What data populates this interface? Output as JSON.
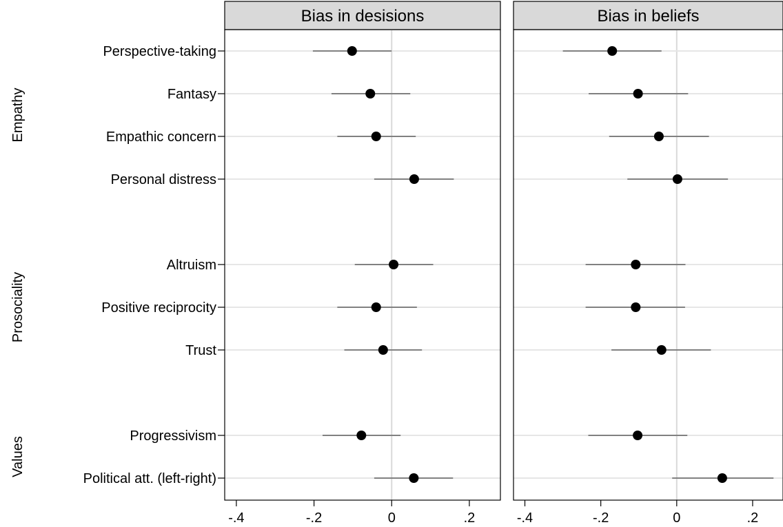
{
  "chart_data": {
    "type": "scatter",
    "panels": [
      {
        "title": "Bias in desisions",
        "series": [
          {
            "label": "Perspective-taking",
            "estimate": -0.102,
            "ci": [
              -0.203,
              0.0
            ]
          },
          {
            "label": "Fantasy",
            "estimate": -0.055,
            "ci": [
              -0.155,
              0.048
            ]
          },
          {
            "label": "Empathic concern",
            "estimate": -0.04,
            "ci": [
              -0.14,
              0.062
            ]
          },
          {
            "label": "Personal distress",
            "estimate": 0.058,
            "ci": [
              -0.045,
              0.16
            ]
          },
          {
            "label": "Altruism",
            "estimate": 0.005,
            "ci": [
              -0.095,
              0.107
            ]
          },
          {
            "label": "Positive reciprocity",
            "estimate": -0.04,
            "ci": [
              -0.14,
              0.065
            ]
          },
          {
            "label": "Trust",
            "estimate": -0.022,
            "ci": [
              -0.122,
              0.078
            ]
          },
          {
            "label": "Progressivism",
            "estimate": -0.078,
            "ci": [
              -0.178,
              0.023
            ]
          },
          {
            "label": "Political att. (left-right)",
            "estimate": 0.057,
            "ci": [
              -0.045,
              0.158
            ]
          }
        ]
      },
      {
        "title": "Bias in beliefs",
        "series": [
          {
            "label": "Perspective-taking",
            "estimate": -0.17,
            "ci": [
              -0.3,
              -0.04
            ]
          },
          {
            "label": "Fantasy",
            "estimate": -0.102,
            "ci": [
              -0.232,
              0.03
            ]
          },
          {
            "label": "Empathic concern",
            "estimate": -0.047,
            "ci": [
              -0.178,
              0.085
            ]
          },
          {
            "label": "Personal distress",
            "estimate": 0.002,
            "ci": [
              -0.13,
              0.135
            ]
          },
          {
            "label": "Altruism",
            "estimate": -0.108,
            "ci": [
              -0.24,
              0.023
            ]
          },
          {
            "label": "Positive reciprocity",
            "estimate": -0.108,
            "ci": [
              -0.24,
              0.022
            ]
          },
          {
            "label": "Trust",
            "estimate": -0.04,
            "ci": [
              -0.172,
              0.09
            ]
          },
          {
            "label": "Progressivism",
            "estimate": -0.103,
            "ci": [
              -0.233,
              0.028
            ]
          },
          {
            "label": "Political att. (left-right)",
            "estimate": 0.12,
            "ci": [
              -0.012,
              0.255
            ]
          }
        ]
      }
    ],
    "groups": [
      {
        "name": "Empathy",
        "items": [
          "Perspective-taking",
          "Fantasy",
          "Empathic concern",
          "Personal distress"
        ]
      },
      {
        "name": "Prosociality",
        "items": [
          "Altruism",
          "Positive reciprocity",
          "Trust"
        ]
      },
      {
        "name": "Values",
        "items": [
          "Progressivism",
          "Political att. (left-right)"
        ]
      }
    ],
    "x_ticks": [
      -0.4,
      -0.2,
      0,
      0.2
    ],
    "x_tick_labels": [
      "-.4",
      "-.2",
      "0",
      ".2"
    ],
    "xlim": [
      -0.43,
      0.28
    ],
    "zero_line": true,
    "legend": "none"
  }
}
